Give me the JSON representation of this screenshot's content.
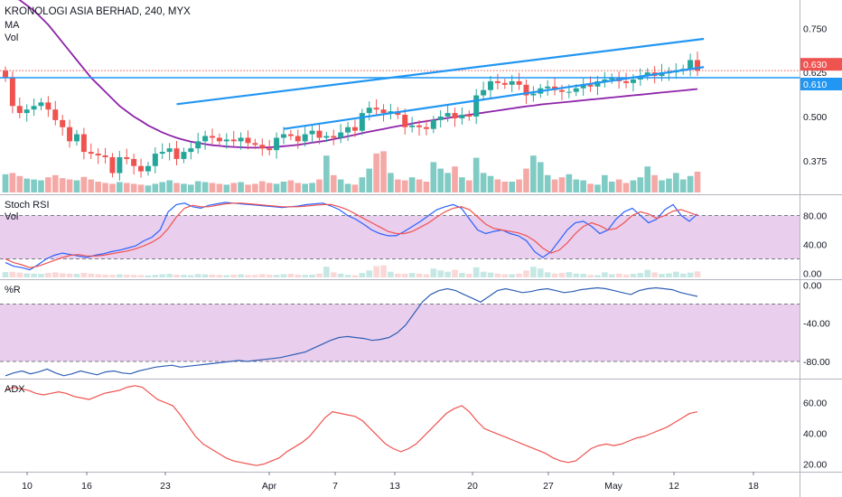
{
  "header": {
    "title": "KRONOLOGI ASIA BERHAD, 240, MYX",
    "ma_label": "MA",
    "vol_label": "Vol"
  },
  "colors": {
    "up": "#26a69a",
    "down": "#ef5350",
    "up_vol": "#80cbc4",
    "down_vol": "#f5a9a7",
    "ma": "#8e24aa",
    "channel": "#2196f3",
    "stoch_k": "#2962ff",
    "stoch_d": "#ef5350",
    "williams": "#2f5fb4",
    "adx": "#ef5350",
    "band_fill": "#e1bee7"
  },
  "chart_data": [
    {
      "type": "candlestick",
      "pane": "price",
      "y_ticks": [
        "0.750",
        "0.625",
        "0.500",
        "0.375"
      ],
      "ylim": [
        0.28,
        0.83
      ],
      "x_ticks": [
        "10",
        "16",
        "23",
        "Apr",
        "7",
        "13",
        "20",
        "27",
        "May",
        "12",
        "18"
      ],
      "price_labels": [
        {
          "text": "0.630",
          "value": 0.63,
          "color": "#ef5350"
        },
        {
          "text": "0.610",
          "value": 0.61,
          "color": "#2196f3"
        }
      ],
      "horizontal_line": 0.61,
      "close": [
        0.61,
        0.53,
        0.51,
        0.52,
        0.53,
        0.54,
        0.52,
        0.49,
        0.47,
        0.43,
        0.45,
        0.4,
        0.395,
        0.39,
        0.385,
        0.34,
        0.385,
        0.38,
        0.36,
        0.345,
        0.36,
        0.395,
        0.4,
        0.41,
        0.38,
        0.4,
        0.41,
        0.43,
        0.445,
        0.44,
        0.43,
        0.435,
        0.43,
        0.44,
        0.425,
        0.42,
        0.41,
        0.405,
        0.44,
        0.45,
        0.445,
        0.43,
        0.45,
        0.46,
        0.44,
        0.445,
        0.44,
        0.455,
        0.47,
        0.46,
        0.51,
        0.525,
        0.52,
        0.51,
        0.515,
        0.505,
        0.47,
        0.475,
        0.47,
        0.465,
        0.49,
        0.5,
        0.51,
        0.495,
        0.505,
        0.5,
        0.56,
        0.575,
        0.6,
        0.595,
        0.59,
        0.6,
        0.59,
        0.56,
        0.565,
        0.58,
        0.585,
        0.575,
        0.57,
        0.57,
        0.58,
        0.59,
        0.585,
        0.6,
        0.605,
        0.61,
        0.6,
        0.595,
        0.605,
        0.615,
        0.625,
        0.615,
        0.625,
        0.625,
        0.63,
        0.635,
        0.66,
        0.63
      ],
      "ma": [
        0.85,
        0.84,
        0.83,
        0.815,
        0.8,
        0.78,
        0.76,
        0.735,
        0.71,
        0.685,
        0.66,
        0.635,
        0.61,
        0.59,
        0.57,
        0.55,
        0.53,
        0.515,
        0.5,
        0.488,
        0.475,
        0.465,
        0.455,
        0.447,
        0.44,
        0.434,
        0.429,
        0.425,
        0.422,
        0.419,
        0.417,
        0.415,
        0.414,
        0.413,
        0.412,
        0.412,
        0.412,
        0.413,
        0.414,
        0.416,
        0.418,
        0.42,
        0.423,
        0.426,
        0.429,
        0.432,
        0.436,
        0.44,
        0.444,
        0.448,
        0.453,
        0.457,
        0.461,
        0.465,
        0.469,
        0.473,
        0.476,
        0.48,
        0.484,
        0.487,
        0.49,
        0.493,
        0.496,
        0.499,
        0.502,
        0.505,
        0.508,
        0.511,
        0.514,
        0.517,
        0.52,
        0.523,
        0.526,
        0.529,
        0.531,
        0.534,
        0.536,
        0.538,
        0.54,
        0.542,
        0.544,
        0.546,
        0.548,
        0.55,
        0.552,
        0.554,
        0.556,
        0.558,
        0.56,
        0.562,
        0.564,
        0.566,
        0.568,
        0.57,
        0.572,
        0.574,
        0.576,
        0.578
      ],
      "channel_upper": [
        [
          0.535,
          8
        ],
        [
          0.72,
          32
        ]
      ],
      "channel_lower": [
        [
          0.465,
          13
        ],
        [
          0.64,
          32
        ]
      ],
      "volume": [
        0.42,
        0.45,
        0.38,
        0.32,
        0.3,
        0.28,
        0.35,
        0.4,
        0.33,
        0.3,
        0.28,
        0.36,
        0.3,
        0.25,
        0.22,
        0.2,
        0.24,
        0.22,
        0.2,
        0.18,
        0.16,
        0.2,
        0.24,
        0.28,
        0.22,
        0.2,
        0.18,
        0.26,
        0.24,
        0.22,
        0.2,
        0.18,
        0.22,
        0.24,
        0.18,
        0.2,
        0.26,
        0.22,
        0.2,
        0.25,
        0.28,
        0.22,
        0.2,
        0.22,
        0.3,
        0.85,
        0.4,
        0.3,
        0.2,
        0.18,
        0.35,
        0.55,
        0.9,
        0.95,
        0.45,
        0.3,
        0.28,
        0.35,
        0.3,
        0.25,
        0.7,
        0.55,
        0.45,
        0.6,
        0.35,
        0.28,
        0.8,
        0.45,
        0.38,
        0.3,
        0.25,
        0.25,
        0.3,
        0.55,
        0.85,
        0.7,
        0.4,
        0.3,
        0.35,
        0.42,
        0.3,
        0.28,
        0.2,
        0.18,
        0.4,
        0.25,
        0.3,
        0.22,
        0.28,
        0.35,
        0.6,
        0.4,
        0.28,
        0.32,
        0.45,
        0.3,
        0.38,
        0.48
      ]
    },
    {
      "type": "line",
      "pane": "stoch_rsi",
      "title": "Stoch RSI",
      "subtitle": "Vol",
      "y_ticks": [
        "80.00",
        "40.00",
        "0.00"
      ],
      "ylim": [
        -8,
        108
      ],
      "band": [
        20,
        80
      ],
      "series": [
        {
          "name": "K",
          "values": [
            15,
            10,
            8,
            5,
            12,
            20,
            25,
            28,
            26,
            24,
            22,
            25,
            27,
            30,
            32,
            35,
            38,
            45,
            50,
            60,
            85,
            95,
            97,
            92,
            90,
            94,
            96,
            98,
            97,
            96,
            95,
            94,
            93,
            92,
            91,
            92,
            93,
            95,
            96,
            97,
            93,
            88,
            80,
            75,
            68,
            60,
            55,
            52,
            52,
            58,
            65,
            72,
            80,
            88,
            92,
            95,
            90,
            75,
            60,
            55,
            58,
            60,
            55,
            52,
            45,
            30,
            22,
            30,
            45,
            60,
            70,
            72,
            65,
            55,
            60,
            75,
            85,
            90,
            80,
            70,
            75,
            88,
            95,
            80,
            72,
            82
          ]
        },
        {
          "name": "D",
          "values": [
            20,
            15,
            12,
            8,
            10,
            14,
            18,
            22,
            25,
            26,
            24,
            24,
            25,
            27,
            29,
            31,
            34,
            38,
            43,
            50,
            62,
            78,
            90,
            94,
            92,
            92,
            94,
            96,
            97,
            97,
            96,
            95,
            94,
            93,
            92,
            92,
            92,
            93,
            94,
            95,
            95,
            92,
            88,
            82,
            76,
            70,
            64,
            58,
            55,
            55,
            58,
            64,
            70,
            78,
            85,
            90,
            92,
            88,
            78,
            68,
            62,
            60,
            58,
            56,
            52,
            45,
            35,
            28,
            32,
            42,
            55,
            65,
            70,
            66,
            60,
            62,
            70,
            80,
            85,
            82,
            76,
            80,
            86,
            88,
            84,
            80
          ]
        }
      ]
    },
    {
      "type": "line",
      "pane": "williams_r",
      "title": "%R",
      "y_ticks": [
        "0.00",
        "-40.00",
        "-80.00"
      ],
      "ylim": [
        -98,
        5
      ],
      "band": [
        -80,
        -20
      ],
      "series": [
        {
          "name": "%R",
          "values": [
            -95,
            -92,
            -90,
            -93,
            -91,
            -88,
            -92,
            -95,
            -93,
            -90,
            -92,
            -94,
            -91,
            -90,
            -92,
            -93,
            -90,
            -88,
            -86,
            -85,
            -84,
            -86,
            -85,
            -84,
            -83,
            -82,
            -81,
            -80,
            -79,
            -80,
            -79,
            -78,
            -77,
            -76,
            -74,
            -72,
            -70,
            -66,
            -62,
            -58,
            -55,
            -54,
            -55,
            -56,
            -58,
            -57,
            -55,
            -50,
            -42,
            -30,
            -18,
            -10,
            -6,
            -4,
            -6,
            -10,
            -14,
            -18,
            -12,
            -6,
            -4,
            -6,
            -8,
            -7,
            -5,
            -4,
            -6,
            -8,
            -7,
            -5,
            -4,
            -3,
            -4,
            -6,
            -8,
            -10,
            -6,
            -4,
            -3,
            -4,
            -5,
            -8,
            -10,
            -12
          ]
        }
      ]
    },
    {
      "type": "line",
      "pane": "adx",
      "title": "ADX",
      "y_ticks": [
        "60.00",
        "40.00",
        "20.00"
      ],
      "ylim": [
        15,
        75
      ],
      "series": [
        {
          "name": "ADX",
          "values": [
            68,
            70,
            69,
            68,
            66,
            65,
            66,
            67,
            66,
            64,
            63,
            62,
            64,
            66,
            67,
            68,
            70,
            71,
            70,
            66,
            62,
            60,
            58,
            52,
            45,
            38,
            33,
            30,
            27,
            24,
            22,
            21,
            20,
            19,
            20,
            22,
            24,
            28,
            31,
            34,
            38,
            44,
            50,
            54,
            53,
            52,
            51,
            48,
            43,
            38,
            33,
            30,
            28,
            30,
            33,
            38,
            43,
            48,
            53,
            56,
            58,
            54,
            48,
            43,
            41,
            39,
            37,
            35,
            33,
            31,
            29,
            27,
            24,
            22,
            21,
            22,
            26,
            30,
            32,
            33,
            32,
            33,
            35,
            37,
            38,
            40,
            42,
            44,
            47,
            50,
            53,
            54
          ]
        }
      ]
    }
  ]
}
